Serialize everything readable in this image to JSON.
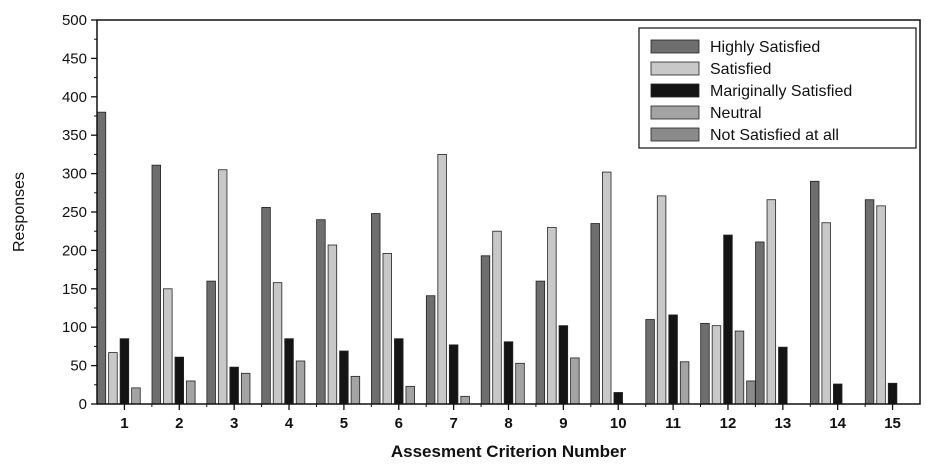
{
  "chart_data": {
    "type": "bar",
    "title": "",
    "xlabel": "Assesment Criterion Number",
    "ylabel": "Responses",
    "ylim": [
      0,
      500
    ],
    "yticks": [
      0,
      50,
      100,
      150,
      200,
      250,
      300,
      350,
      400,
      450,
      500
    ],
    "categories": [
      "1",
      "2",
      "3",
      "4",
      "5",
      "6",
      "7",
      "8",
      "9",
      "10",
      "11",
      "12",
      "13",
      "14",
      "15"
    ],
    "legend_position": "top-right",
    "grid": false,
    "series": [
      {
        "name": "Highly Satisfied",
        "color": "#6e6e6e",
        "values": [
          380,
          311,
          160,
          256,
          240,
          248,
          141,
          193,
          160,
          235,
          110,
          105,
          211,
          290,
          266
        ]
      },
      {
        "name": "Satisfied",
        "color": "#c8c8c8",
        "values": [
          67,
          150,
          305,
          158,
          207,
          196,
          325,
          225,
          230,
          302,
          271,
          102,
          266,
          236,
          258
        ]
      },
      {
        "name": "Mariginally Satisfied",
        "color": "#141414",
        "values": [
          85,
          61,
          48,
          85,
          69,
          85,
          77,
          81,
          102,
          15,
          116,
          220,
          74,
          26,
          27
        ]
      },
      {
        "name": "Neutral",
        "color": "#a3a3a3",
        "values": [
          21,
          30,
          40,
          56,
          36,
          23,
          10,
          53,
          60,
          0,
          55,
          95,
          0,
          0,
          0
        ]
      },
      {
        "name": "Not Satisfied at all",
        "color": "#8a8a8a",
        "values": [
          0,
          0,
          0,
          0,
          0,
          0,
          0,
          0,
          0,
          0,
          0,
          30,
          0,
          0,
          0
        ]
      }
    ]
  }
}
